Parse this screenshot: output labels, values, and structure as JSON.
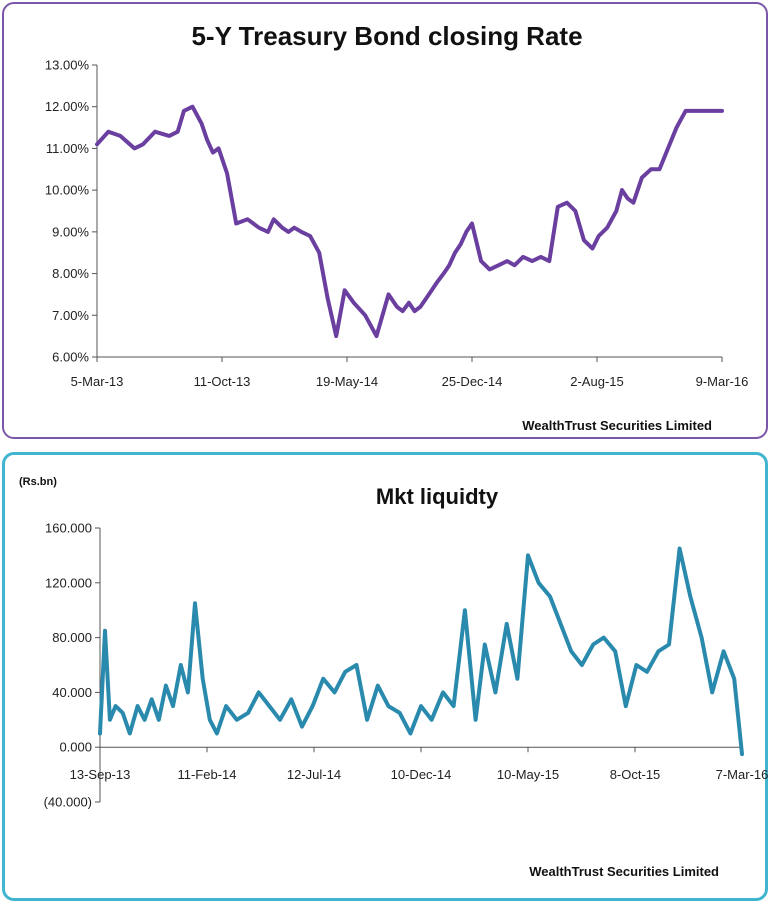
{
  "chart_data": [
    {
      "type": "line",
      "title": "5-Y Treasury Bond closing Rate",
      "y_tick_labels": [
        "6.00%",
        "7.00%",
        "8.00%",
        "9.00%",
        "10.00%",
        "11.00%",
        "12.00%",
        "13.00%"
      ],
      "x_tick_labels": [
        "5-Mar-13",
        "11-Oct-13",
        "19-May-14",
        "25-Dec-14",
        "2-Aug-15",
        "9-Mar-16"
      ],
      "ylim": [
        6.0,
        13.0
      ],
      "xlim": [
        "2013-03-05",
        "2016-03-09"
      ],
      "grid": false,
      "legend": "none",
      "source_note": "WealthTrust Securities Limited",
      "series": [
        {
          "color": "#6a3fa0",
          "x": [
            "2013-03-05",
            "2013-03-25",
            "2013-04-15",
            "2013-05-10",
            "2013-05-25",
            "2013-06-15",
            "2013-07-10",
            "2013-07-25",
            "2013-08-05",
            "2013-08-20",
            "2013-09-05",
            "2013-09-15",
            "2013-09-25",
            "2013-10-05",
            "2013-10-20",
            "2013-11-05",
            "2013-11-25",
            "2013-12-15",
            "2013-12-31",
            "2014-01-10",
            "2014-01-25",
            "2014-02-05",
            "2014-02-15",
            "2014-02-28",
            "2014-03-15",
            "2014-03-31",
            "2014-04-15",
            "2014-04-30",
            "2014-05-15",
            "2014-05-31",
            "2014-06-20",
            "2014-07-10",
            "2014-07-31",
            "2014-08-15",
            "2014-08-25",
            "2014-09-05",
            "2014-09-15",
            "2014-09-25",
            "2014-10-05",
            "2014-10-15",
            "2014-10-25",
            "2014-11-05",
            "2014-11-15",
            "2014-11-25",
            "2014-12-05",
            "2014-12-15",
            "2014-12-25",
            "2015-01-10",
            "2015-01-25",
            "2015-02-10",
            "2015-02-25",
            "2015-03-10",
            "2015-03-25",
            "2015-04-10",
            "2015-04-25",
            "2015-05-10",
            "2015-05-25",
            "2015-06-10",
            "2015-06-25",
            "2015-07-10",
            "2015-07-25",
            "2015-08-05",
            "2015-08-20",
            "2015-09-05",
            "2015-09-15",
            "2015-09-25",
            "2015-10-05",
            "2015-10-20",
            "2015-11-05",
            "2015-11-20",
            "2015-12-05",
            "2015-12-20",
            "2016-01-05",
            "2016-01-20",
            "2016-02-05",
            "2016-02-20",
            "2016-03-01",
            "2016-03-09"
          ],
          "values": [
            11.1,
            11.4,
            11.3,
            11.0,
            11.1,
            11.4,
            11.3,
            11.4,
            11.9,
            12.0,
            11.6,
            11.2,
            10.9,
            11.0,
            10.4,
            9.2,
            9.3,
            9.1,
            9.0,
            9.3,
            9.1,
            9.0,
            9.1,
            9.0,
            8.9,
            8.5,
            7.4,
            6.5,
            7.6,
            7.3,
            7.0,
            6.5,
            7.5,
            7.2,
            7.1,
            7.3,
            7.1,
            7.2,
            7.4,
            7.6,
            7.8,
            8.0,
            8.2,
            8.5,
            8.7,
            9.0,
            9.2,
            8.3,
            8.1,
            8.2,
            8.3,
            8.2,
            8.4,
            8.3,
            8.4,
            8.3,
            9.6,
            9.7,
            9.5,
            8.8,
            8.6,
            8.9,
            9.1,
            9.5,
            10.0,
            9.8,
            9.7,
            10.3,
            10.5,
            10.5,
            11.0,
            11.5,
            11.9,
            11.9,
            11.9,
            11.9,
            11.9,
            11.9
          ]
        }
      ]
    },
    {
      "type": "line",
      "title": "Mkt liquidty",
      "y_unit_label": "(Rs.bn)",
      "y_tick_labels": [
        "(40.000)",
        "0.000",
        "40.000",
        "80.000",
        "120.000",
        "160.000"
      ],
      "x_tick_labels": [
        "13-Sep-13",
        "11-Feb-14",
        "12-Jul-14",
        "10-Dec-14",
        "10-May-15",
        "8-Oct-15",
        "7-Mar-16"
      ],
      "ylim": [
        -40,
        160
      ],
      "xlim": [
        "2013-09-13",
        "2016-03-07"
      ],
      "grid": false,
      "legend": "none",
      "source_note": "WealthTrust Securities Limited",
      "series": [
        {
          "color": "#2a8aad",
          "x": [
            "2013-09-13",
            "2013-09-20",
            "2013-09-27",
            "2013-10-05",
            "2013-10-15",
            "2013-10-25",
            "2013-11-05",
            "2013-11-15",
            "2013-11-25",
            "2013-12-05",
            "2013-12-15",
            "2013-12-25",
            "2014-01-05",
            "2014-01-15",
            "2014-01-25",
            "2014-02-05",
            "2014-02-15",
            "2014-02-25",
            "2014-03-10",
            "2014-03-25",
            "2014-04-10",
            "2014-04-25",
            "2014-05-10",
            "2014-05-25",
            "2014-06-10",
            "2014-06-25",
            "2014-07-10",
            "2014-07-25",
            "2014-08-10",
            "2014-08-25",
            "2014-09-10",
            "2014-09-25",
            "2014-10-10",
            "2014-10-25",
            "2014-11-10",
            "2014-11-25",
            "2014-12-10",
            "2014-12-25",
            "2015-01-10",
            "2015-01-25",
            "2015-02-10",
            "2015-02-25",
            "2015-03-10",
            "2015-03-25",
            "2015-04-10",
            "2015-04-25",
            "2015-05-10",
            "2015-05-25",
            "2015-06-10",
            "2015-06-25",
            "2015-07-10",
            "2015-07-25",
            "2015-08-10",
            "2015-08-25",
            "2015-09-10",
            "2015-09-25",
            "2015-10-10",
            "2015-10-25",
            "2015-11-10",
            "2015-11-25",
            "2015-12-10",
            "2015-12-25",
            "2016-01-10",
            "2016-01-25",
            "2016-02-10",
            "2016-02-25",
            "2016-03-07"
          ],
          "values": [
            10,
            85,
            20,
            30,
            25,
            10,
            30,
            20,
            35,
            20,
            45,
            30,
            60,
            40,
            105,
            50,
            20,
            10,
            30,
            20,
            25,
            40,
            30,
            20,
            35,
            15,
            30,
            50,
            40,
            55,
            60,
            20,
            45,
            30,
            25,
            10,
            30,
            20,
            40,
            30,
            100,
            20,
            75,
            40,
            90,
            50,
            140,
            120,
            110,
            90,
            70,
            60,
            75,
            80,
            70,
            30,
            60,
            55,
            70,
            75,
            145,
            110,
            80,
            40,
            70,
            50,
            -5
          ]
        }
      ]
    }
  ]
}
